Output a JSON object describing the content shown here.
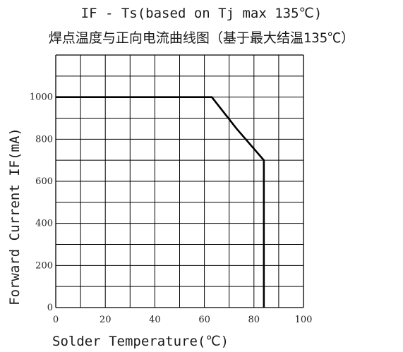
{
  "title_line1": "IF - Ts(based on Tj max 135℃)",
  "title_line2": "焊点温度与正向电流曲线图（基于最大结温135℃）",
  "chart_data": {
    "type": "line",
    "title": "IF - Ts(based on Tj max 135℃)",
    "subtitle": "焊点温度与正向电流曲线图（基于最大结温135℃）",
    "xlabel": "Solder Temperature(℃)",
    "ylabel": "Forward Current IF(mA)",
    "xlim": [
      0,
      100
    ],
    "ylim": [
      0,
      1200
    ],
    "xticks": [
      0,
      20,
      40,
      60,
      80,
      100
    ],
    "yticks": [
      0,
      200,
      400,
      600,
      800,
      1000
    ],
    "grid": true,
    "line_color": "#000000",
    "series": [
      {
        "x": [
          0,
          63,
          73,
          84,
          84
        ],
        "values": [
          1000,
          1000,
          850,
          700,
          0
        ]
      }
    ]
  }
}
